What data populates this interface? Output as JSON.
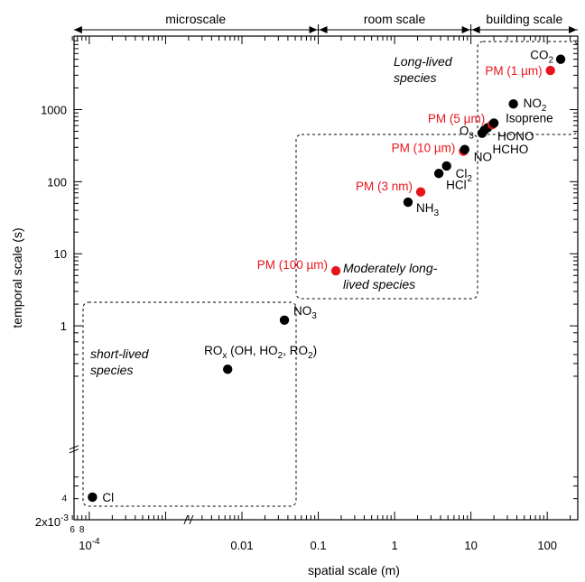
{
  "chart_data": {
    "type": "scatter",
    "xlabel": "spatial scale (m)",
    "ylabel": "temporal scale (s)",
    "x_scale": "log",
    "y_scale": "log",
    "x_tick_labels": [
      "10^-4",
      "0.01",
      "0.1",
      "1",
      "10",
      "100"
    ],
    "x_minor_tick_labels": [
      "6",
      "8"
    ],
    "y_tick_labels": [
      "1",
      "10",
      "100",
      "1000"
    ],
    "y_minor_tick_labels": [
      "2x10^-3",
      "4"
    ],
    "top_scales": [
      {
        "label": "microscale"
      },
      {
        "label": "room scale"
      },
      {
        "label": "building scale"
      }
    ],
    "regions": [
      {
        "label_lines": [
          "short-lived",
          "species"
        ]
      },
      {
        "label_lines": [
          "Moderately long-",
          "lived species"
        ]
      },
      {
        "label_lines": [
          "Long-lived",
          "species"
        ]
      }
    ],
    "colors": {
      "black": "#000000",
      "red": "#e8141b"
    },
    "points": [
      {
        "label": "Cl",
        "color": "black",
        "x": 0.00011,
        "y": 0.0042
      },
      {
        "label": "ROx (OH, HO2, RO2)",
        "color": "black",
        "x": 0.0065,
        "y": 0.25
      },
      {
        "label": "NO3",
        "color": "black",
        "x": 0.036,
        "y": 1.2
      },
      {
        "label": "PM (100 µm)",
        "color": "red",
        "x": 0.17,
        "y": 5.8
      },
      {
        "label": "NH3",
        "color": "black",
        "x": 1.5,
        "y": 52
      },
      {
        "label": "PM (3 nm)",
        "color": "red",
        "x": 2.2,
        "y": 72
      },
      {
        "label": "HCl",
        "color": "black",
        "x": 3.8,
        "y": 130
      },
      {
        "label": "Cl2",
        "color": "black",
        "x": 4.8,
        "y": 165
      },
      {
        "label": "PM (10 µm)",
        "color": "red",
        "x": 8.0,
        "y": 265
      },
      {
        "label": "NO",
        "color": "black",
        "x": 8.3,
        "y": 280
      },
      {
        "label": "O3",
        "color": "black",
        "x": 14,
        "y": 470
      },
      {
        "label": "HCHO",
        "color": "black",
        "x": 15,
        "y": 520
      },
      {
        "label": "HONO",
        "color": "black",
        "x": 16.5,
        "y": 560
      },
      {
        "label": "PM (5 µm)",
        "color": "red",
        "x": 19,
        "y": 620
      },
      {
        "label": "Isoprene",
        "color": "black",
        "x": 20,
        "y": 650
      },
      {
        "label": "NO2",
        "color": "black",
        "x": 36,
        "y": 1200
      },
      {
        "label": "PM (1 µm)",
        "color": "red",
        "x": 110,
        "y": 3500
      },
      {
        "label": "CO2",
        "color": "black",
        "x": 150,
        "y": 5000
      }
    ]
  }
}
